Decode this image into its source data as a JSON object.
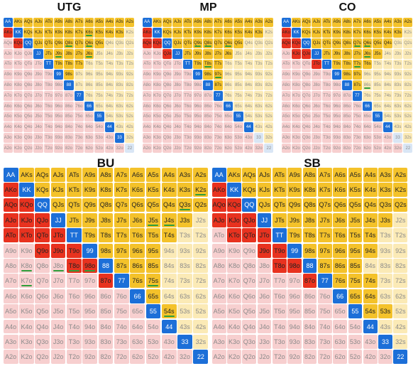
{
  "ranks": [
    "A",
    "K",
    "Q",
    "J",
    "T",
    "9",
    "8",
    "7",
    "6",
    "5",
    "4",
    "3",
    "2"
  ],
  "colors": {
    "pair": "#1c6fd8",
    "open_suited": "#f4c22a",
    "open_offsuit": "#e8321f",
    "fold_suited": "#fbeab6",
    "fold_offsuit": "#f7cfcf",
    "fold_pair": "#d9e6f5",
    "bar": "#2e9e3a",
    "bar_blue": "#1c6fd8"
  },
  "charts": [
    {
      "title": "UTG",
      "suited_open": {
        "A": 12,
        "K": 10,
        "Q": 7,
        "J": 5,
        "T": 3,
        "9": 1,
        "8": 0,
        "7": 0,
        "6": 0,
        "5": 0,
        "4": 0,
        "3": 0
      },
      "offsuit_open": {
        "K": 2,
        "Q": 1,
        "J": 0,
        "T": 0,
        "9": 0,
        "8": 0,
        "7": 0,
        "6": 0,
        "5": 0,
        "4": 0,
        "3": 0,
        "2": 0
      },
      "pair_open": 12,
      "marked": [
        "K6s",
        "Q8s",
        "Q6s",
        "J9s",
        "J6s"
      ]
    },
    {
      "title": "MP",
      "suited_open": {
        "A": 12,
        "K": 10,
        "Q": 7,
        "J": 5,
        "T": 3,
        "9": 2,
        "8": 1,
        "7": 0,
        "6": 0,
        "5": 0,
        "4": 0,
        "3": 0
      },
      "offsuit_open": {
        "K": 3,
        "Q": 2,
        "J": 1,
        "T": 0,
        "9": 0,
        "8": 0,
        "7": 0,
        "6": 0,
        "5": 0,
        "4": 0,
        "3": 0,
        "2": 0
      },
      "pair_open": 11,
      "marked": [
        "Q9s",
        "Q8s",
        "Q6s",
        "T8s",
        "97s"
      ]
    },
    {
      "title": "CO",
      "suited_open": {
        "A": 12,
        "K": 10,
        "Q": 8,
        "J": 6,
        "T": 4,
        "9": 2,
        "8": 1,
        "7": 0,
        "6": 0,
        "5": 0,
        "4": 0,
        "3": 0
      },
      "offsuit_open": {
        "K": 4,
        "Q": 3,
        "J": 2,
        "T": 1,
        "9": 0,
        "8": 0,
        "7": 0,
        "6": 0,
        "5": 0,
        "4": 0,
        "3": 0,
        "2": 0
      },
      "pair_open": 11,
      "marked": [
        "Q7s",
        "Q6s",
        "J6s",
        "T7s",
        "86s"
      ]
    },
    {
      "title": "BU",
      "suited_open": {
        "A": 12,
        "K": 11,
        "Q": 10,
        "J": 8,
        "T": 6,
        "9": 4,
        "8": 3,
        "7": 2,
        "6": 1,
        "5": 1,
        "4": 0,
        "3": 0
      },
      "offsuit_open": {
        "K": 7,
        "Q": 5,
        "J": 4,
        "T": 4,
        "9": 3,
        "8": 2,
        "7": 1,
        "6": 0,
        "5": 0,
        "4": 0,
        "3": 0,
        "2": 0
      },
      "pair_open": 13,
      "marked": [
        "K2s",
        "Q3s",
        "J4s",
        "J5s",
        "K8o",
        "J8o",
        "98o",
        "T8o",
        "K7o",
        "75s",
        "54s"
      ]
    },
    {
      "title": "SB",
      "suited_open": {
        "A": 12,
        "K": 11,
        "Q": 10,
        "J": 8,
        "T": 6,
        "9": 5,
        "8": 3,
        "7": 3,
        "6": 2,
        "5": 2,
        "4": 0,
        "3": 0
      },
      "offsuit_open": {
        "K": 7,
        "Q": 5,
        "J": 4,
        "T": 3,
        "9": 2,
        "8": 2,
        "7": 1,
        "6": 0,
        "5": 0,
        "4": 0,
        "3": 0,
        "2": 0
      },
      "pair_open": 13,
      "marked": []
    }
  ]
}
